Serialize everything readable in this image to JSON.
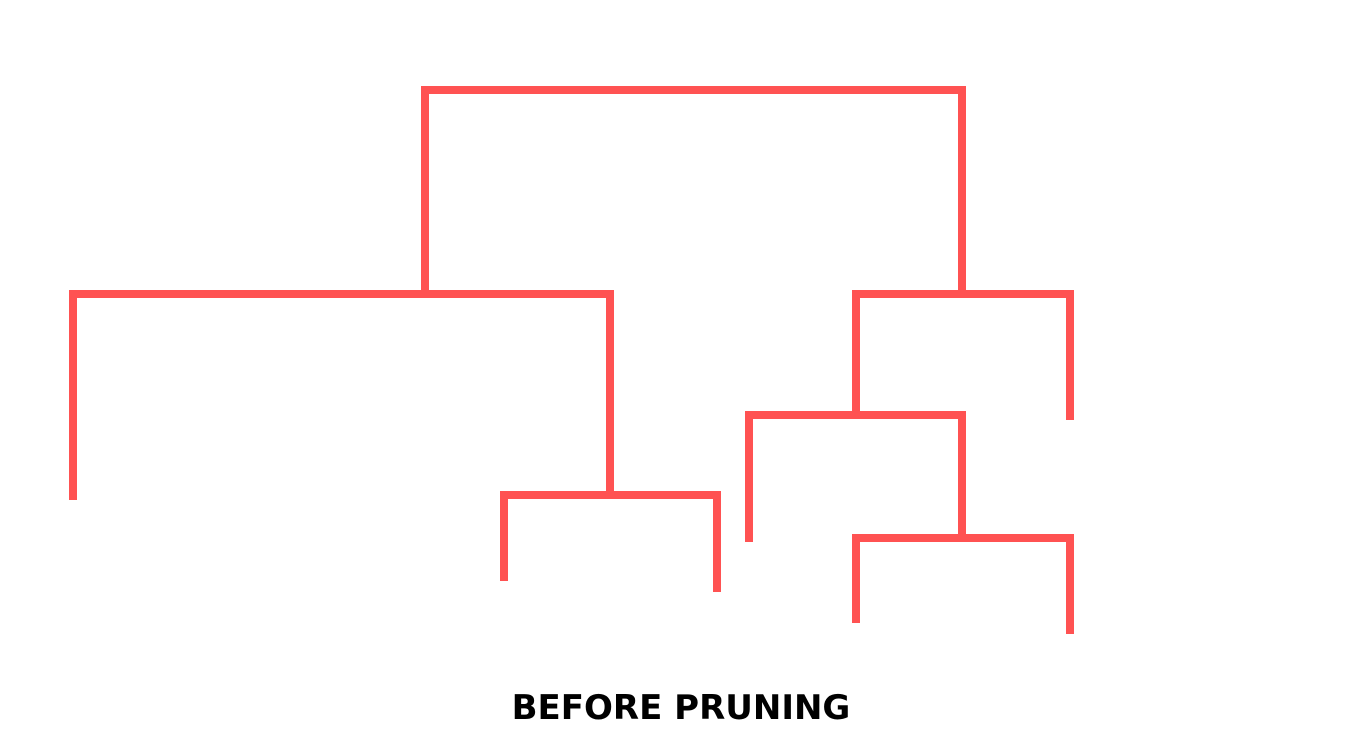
{
  "caption": "BEFORE PRUNING",
  "diagram": {
    "type": "dendrogram",
    "line_color": "#ff5252",
    "background_color": "#ffffff",
    "caption_color": "#000000"
  }
}
